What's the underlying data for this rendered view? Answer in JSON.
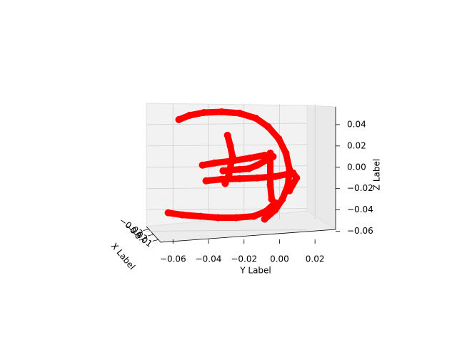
{
  "chart_data": {
    "type": "scatter3d",
    "xlabel": "X Label",
    "ylabel": "Y Label",
    "zlabel": "Z Label",
    "color": "#ff0000",
    "xlim": [
      -0.035,
      -0.005
    ],
    "ylim": [
      -0.075,
      0.03
    ],
    "zlim": [
      -0.065,
      0.06
    ],
    "xticks": [
      {
        "value": -0.03,
        "label": "−0.03"
      },
      {
        "value": -0.02,
        "label": "−0.02"
      },
      {
        "value": -0.01,
        "label": "−0.01"
      }
    ],
    "yticks": [
      {
        "value": -0.06,
        "label": "−0.06"
      },
      {
        "value": -0.04,
        "label": "−0.04"
      },
      {
        "value": -0.02,
        "label": "−0.02"
      },
      {
        "value": 0,
        "label": "0.00"
      },
      {
        "value": 0.02,
        "label": "0.02"
      }
    ],
    "zticks": [
      {
        "value": -0.06,
        "label": "−0.06"
      },
      {
        "value": -0.04,
        "label": "−0.04"
      },
      {
        "value": -0.02,
        "label": "−0.02"
      },
      {
        "value": 0,
        "label": "0.00"
      },
      {
        "value": 0.02,
        "label": "0.02"
      },
      {
        "value": 0.04,
        "label": "0.04"
      }
    ],
    "grid": true,
    "series": [
      {
        "x": [
          -0.02,
          -0.02,
          -0.02,
          -0.02,
          -0.02,
          -0.02,
          -0.02,
          -0.02,
          -0.02,
          -0.02,
          -0.02,
          -0.02,
          -0.02,
          -0.02
        ],
        "y": [
          -0.0567,
          -0.0507,
          -0.0426,
          -0.0326,
          -0.0225,
          -0.0133,
          -0.0064,
          -0.0004,
          0.0036,
          0.0056,
          0.0048,
          0.0016,
          -0.0024,
          -0.0084
        ],
        "z": [
          0.0447,
          0.0487,
          0.0513,
          0.052,
          0.0507,
          0.046,
          0.038,
          0.0267,
          0.0133,
          -0.002,
          -0.0167,
          -0.03,
          -0.04,
          -0.0487
        ]
      },
      {
        "x": [
          -0.02,
          -0.02,
          -0.02,
          -0.02,
          -0.02,
          -0.02,
          -0.02,
          -0.02
        ],
        "y": [
          -0.0627,
          -0.0547,
          -0.0446,
          -0.0346,
          -0.0245,
          -0.0145,
          -0.0076,
          -0.0024
        ],
        "z": [
          -0.0427,
          -0.0447,
          -0.046,
          -0.0473,
          -0.0473,
          -0.046,
          -0.0413,
          -0.0333
        ]
      },
      {
        "x": [
          -0.02,
          -0.02,
          -0.02,
          -0.02,
          -0.02,
          -0.02,
          -0.02,
          -0.02,
          -0.02,
          -0.02
        ],
        "y": [
          -0.0434,
          -0.0366,
          -0.0265,
          -0.0165,
          -0.0084,
          -0.0036,
          -0.0125,
          -0.0173,
          -0.0225,
          -0.0318
        ],
        "z": [
          0.002,
          0.004,
          0.006,
          0.0087,
          0.0113,
          0.01,
          0.002,
          -0.0013,
          -0.002,
          -0.0033
        ]
      },
      {
        "x": [
          -0.02,
          -0.02,
          -0.02,
          -0.02,
          -0.02,
          -0.02,
          -0.02,
          -0.02
        ],
        "y": [
          -0.0414,
          -0.0326,
          -0.0225,
          -0.0125,
          -0.0024,
          0.0076,
          0.0096,
          0.0056
        ],
        "z": [
          -0.0127,
          -0.0113,
          -0.0107,
          -0.01,
          -0.0087,
          -0.0053,
          -0.01,
          -0.022
        ]
      },
      {
        "x": [
          -0.02,
          -0.02,
          -0.02,
          -0.02,
          -0.02
        ],
        "y": [
          -0.0293,
          -0.0277,
          -0.0265,
          -0.0285,
          -0.0306
        ],
        "z": [
          0.03,
          0.02,
          0.01,
          -0.0067,
          -0.0153
        ]
      },
      {
        "x": [
          -0.02,
          -0.02,
          -0.02
        ],
        "y": [
          -0.0052,
          -0.0052,
          -0.0044
        ],
        "z": [
          0.0133,
          -0.0167,
          -0.03
        ]
      }
    ]
  }
}
